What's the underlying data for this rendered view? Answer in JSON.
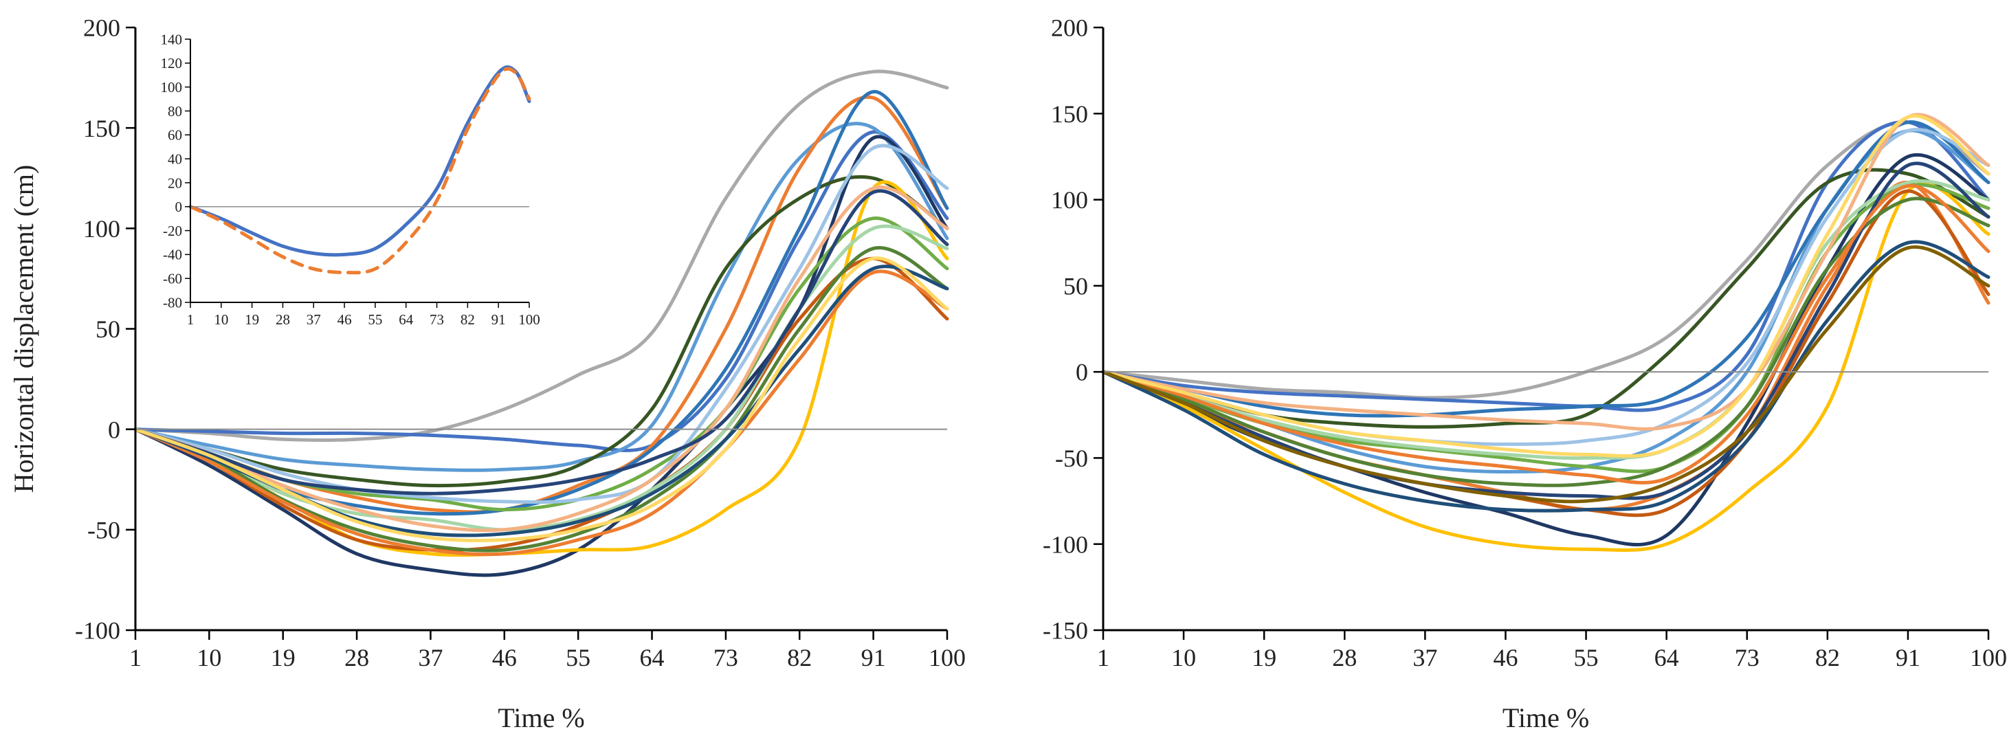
{
  "chart_data": [
    {
      "type": "line",
      "panel": "left",
      "xlabel": "Time %",
      "ylabel": "Horizontal displacement (cm)",
      "x_ticks": [
        "1",
        "10",
        "19",
        "28",
        "37",
        "46",
        "55",
        "64",
        "73",
        "82",
        "91",
        "100"
      ],
      "y_ticks": [
        "-100",
        "-50",
        "0",
        "50",
        "100",
        "150",
        "200"
      ],
      "xlim": [
        1,
        100
      ],
      "ylim": [
        -100,
        200
      ],
      "zero_line": true,
      "grid": false,
      "x": [
        1,
        10,
        19,
        28,
        37,
        46,
        55,
        64,
        73,
        82,
        91,
        100
      ],
      "series": [
        {
          "color": "#a9a9a9",
          "values": [
            0,
            -2,
            -5,
            -5,
            -1,
            10,
            27,
            48,
            115,
            162,
            178,
            170
          ]
        },
        {
          "color": "#4472c4",
          "values": [
            0,
            -1,
            -2,
            -2,
            -3,
            -5,
            -8,
            -8,
            25,
            95,
            148,
            105
          ]
        },
        {
          "color": "#5b9bd5",
          "values": [
            0,
            -8,
            -15,
            -18,
            -20,
            -20,
            -16,
            2,
            75,
            135,
            150,
            95
          ]
        },
        {
          "color": "#ed7d31",
          "values": [
            0,
            -12,
            -25,
            -34,
            -40,
            -40,
            -28,
            -8,
            50,
            130,
            165,
            110
          ]
        },
        {
          "color": "#375623",
          "values": [
            0,
            -10,
            -20,
            -25,
            -28,
            -26,
            -18,
            10,
            80,
            115,
            125,
            100
          ]
        },
        {
          "color": "#1f3864",
          "values": [
            0,
            -18,
            -40,
            -62,
            -70,
            -72,
            -60,
            -30,
            10,
            60,
            145,
            100
          ]
        },
        {
          "color": "#2e75b6",
          "values": [
            0,
            -15,
            -30,
            -38,
            -42,
            -40,
            -30,
            -10,
            30,
            100,
            168,
            110
          ]
        },
        {
          "color": "#ffc000",
          "values": [
            0,
            -15,
            -35,
            -55,
            -62,
            -62,
            -60,
            -58,
            -40,
            -5,
            120,
            85
          ]
        },
        {
          "color": "#70ad47",
          "values": [
            0,
            -12,
            -25,
            -32,
            -35,
            -40,
            -35,
            -20,
            10,
            70,
            105,
            80
          ]
        },
        {
          "color": "#c55a11",
          "values": [
            0,
            -16,
            -38,
            -55,
            -60,
            -58,
            -48,
            -30,
            0,
            55,
            85,
            55
          ]
        },
        {
          "color": "#a5d6a7",
          "values": [
            0,
            -14,
            -32,
            -42,
            -45,
            -50,
            -45,
            -30,
            0,
            60,
            100,
            90
          ]
        },
        {
          "color": "#9dc3e6",
          "values": [
            0,
            -10,
            -22,
            -30,
            -34,
            -36,
            -35,
            -25,
            20,
            80,
            140,
            120
          ]
        },
        {
          "color": "#548235",
          "values": [
            0,
            -14,
            -35,
            -50,
            -58,
            -60,
            -52,
            -35,
            -5,
            50,
            90,
            70
          ]
        },
        {
          "color": "#f4b183",
          "values": [
            0,
            -12,
            -28,
            -40,
            -48,
            -50,
            -42,
            -25,
            10,
            75,
            120,
            100
          ]
        },
        {
          "color": "#264478",
          "values": [
            0,
            -12,
            -25,
            -30,
            -32,
            -30,
            -25,
            -15,
            5,
            60,
            118,
            92
          ]
        },
        {
          "color": "#ed7d31",
          "values": [
            0,
            -16,
            -36,
            -52,
            -60,
            -62,
            -55,
            -42,
            -10,
            35,
            78,
            60
          ]
        },
        {
          "color": "#1f4e79",
          "values": [
            0,
            -14,
            -30,
            -45,
            -52,
            -52,
            -46,
            -32,
            -5,
            40,
            80,
            70
          ]
        },
        {
          "color": "#ffd966",
          "values": [
            0,
            -13,
            -30,
            -46,
            -54,
            -55,
            -50,
            -38,
            -10,
            45,
            85,
            60
          ]
        }
      ],
      "inset": {
        "type": "line",
        "x_ticks": [
          "1",
          "10",
          "19",
          "28",
          "37",
          "46",
          "55",
          "64",
          "73",
          "82",
          "91",
          "100"
        ],
        "y_ticks": [
          "-80",
          "-60",
          "-40",
          "-20",
          "0",
          "20",
          "40",
          "60",
          "80",
          "100",
          "120",
          "140"
        ],
        "xlim": [
          1,
          100
        ],
        "ylim": [
          -80,
          140
        ],
        "zero_line": true,
        "x": [
          1,
          10,
          19,
          28,
          37,
          46,
          55,
          64,
          73,
          82,
          91,
          96,
          100
        ],
        "series": [
          {
            "color": "#4472c4",
            "style": "solid",
            "values": [
              0,
              -10,
              -22,
              -33,
              -39,
              -40,
              -35,
              -15,
              15,
              70,
              112,
              113,
              88
            ]
          },
          {
            "color": "#ed7d31",
            "style": "dashed",
            "values": [
              0,
              -12,
              -27,
              -42,
              -52,
              -55,
              -52,
              -30,
              5,
              65,
              110,
              112,
              90
            ]
          }
        ]
      }
    },
    {
      "type": "line",
      "panel": "right",
      "xlabel": "Time %",
      "ylabel": "",
      "x_ticks": [
        "1",
        "10",
        "19",
        "28",
        "37",
        "46",
        "55",
        "64",
        "73",
        "82",
        "91",
        "100"
      ],
      "y_ticks": [
        "-150",
        "-100",
        "-50",
        "0",
        "50",
        "100",
        "150",
        "200"
      ],
      "xlim": [
        1,
        100
      ],
      "ylim": [
        -150,
        200
      ],
      "zero_line": true,
      "grid": false,
      "x": [
        1,
        10,
        19,
        28,
        37,
        46,
        55,
        64,
        73,
        82,
        91,
        100
      ],
      "series": [
        {
          "color": "#a9a9a9",
          "values": [
            0,
            -5,
            -10,
            -12,
            -15,
            -12,
            0,
            20,
            65,
            120,
            145,
            115
          ]
        },
        {
          "color": "#4472c4",
          "values": [
            0,
            -8,
            -12,
            -14,
            -16,
            -18,
            -20,
            -20,
            10,
            110,
            145,
            100
          ]
        },
        {
          "color": "#5b9bd5",
          "values": [
            0,
            -15,
            -30,
            -45,
            -55,
            -58,
            -55,
            -40,
            0,
            95,
            140,
            110
          ]
        },
        {
          "color": "#ed7d31",
          "values": [
            0,
            -18,
            -35,
            -50,
            -60,
            -70,
            -80,
            -70,
            -35,
            50,
            110,
            40
          ]
        },
        {
          "color": "#375623",
          "values": [
            0,
            -12,
            -25,
            -30,
            -32,
            -30,
            -25,
            10,
            60,
            110,
            115,
            90
          ]
        },
        {
          "color": "#1f3864",
          "values": [
            0,
            -20,
            -40,
            -55,
            -70,
            -82,
            -95,
            -95,
            -30,
            60,
            125,
            100
          ]
        },
        {
          "color": "#2e75b6",
          "values": [
            0,
            -10,
            -20,
            -25,
            -25,
            -22,
            -20,
            -15,
            20,
            95,
            145,
            110
          ]
        },
        {
          "color": "#ffc000",
          "values": [
            0,
            -20,
            -45,
            -70,
            -90,
            -100,
            -103,
            -100,
            -70,
            -20,
            105,
            80
          ]
        },
        {
          "color": "#70ad47",
          "values": [
            0,
            -15,
            -30,
            -40,
            -45,
            -50,
            -55,
            -55,
            -20,
            70,
            108,
            95
          ]
        },
        {
          "color": "#c55a11",
          "values": [
            0,
            -18,
            -38,
            -55,
            -65,
            -72,
            -80,
            -80,
            -40,
            40,
            105,
            45
          ]
        },
        {
          "color": "#a5d6a7",
          "values": [
            0,
            -14,
            -28,
            -38,
            -44,
            -48,
            -50,
            -45,
            -10,
            75,
            110,
            100
          ]
        },
        {
          "color": "#9dc3e6",
          "values": [
            0,
            -12,
            -25,
            -35,
            -40,
            -42,
            -40,
            -30,
            5,
            90,
            140,
            120
          ]
        },
        {
          "color": "#548235",
          "values": [
            0,
            -16,
            -35,
            -50,
            -60,
            -65,
            -65,
            -55,
            -20,
            60,
            100,
            85
          ]
        },
        {
          "color": "#f4b183",
          "values": [
            0,
            -10,
            -18,
            -22,
            -25,
            -28,
            -30,
            -32,
            -10,
            70,
            148,
            120
          ]
        },
        {
          "color": "#264478",
          "values": [
            0,
            -18,
            -38,
            -55,
            -65,
            -70,
            -72,
            -70,
            -35,
            45,
            120,
            90
          ]
        },
        {
          "color": "#ed7d31",
          "values": [
            0,
            -14,
            -30,
            -42,
            -50,
            -55,
            -60,
            -62,
            -25,
            55,
            108,
            70
          ]
        },
        {
          "color": "#1f4e79",
          "values": [
            0,
            -22,
            -48,
            -65,
            -75,
            -80,
            -80,
            -75,
            -40,
            30,
            75,
            55
          ]
        },
        {
          "color": "#ffd966",
          "values": [
            0,
            -12,
            -25,
            -35,
            -40,
            -45,
            -48,
            -45,
            -10,
            80,
            148,
            115
          ]
        },
        {
          "color": "#806000",
          "values": [
            0,
            -18,
            -40,
            -55,
            -65,
            -72,
            -75,
            -65,
            -35,
            25,
            72,
            50
          ]
        }
      ]
    }
  ]
}
